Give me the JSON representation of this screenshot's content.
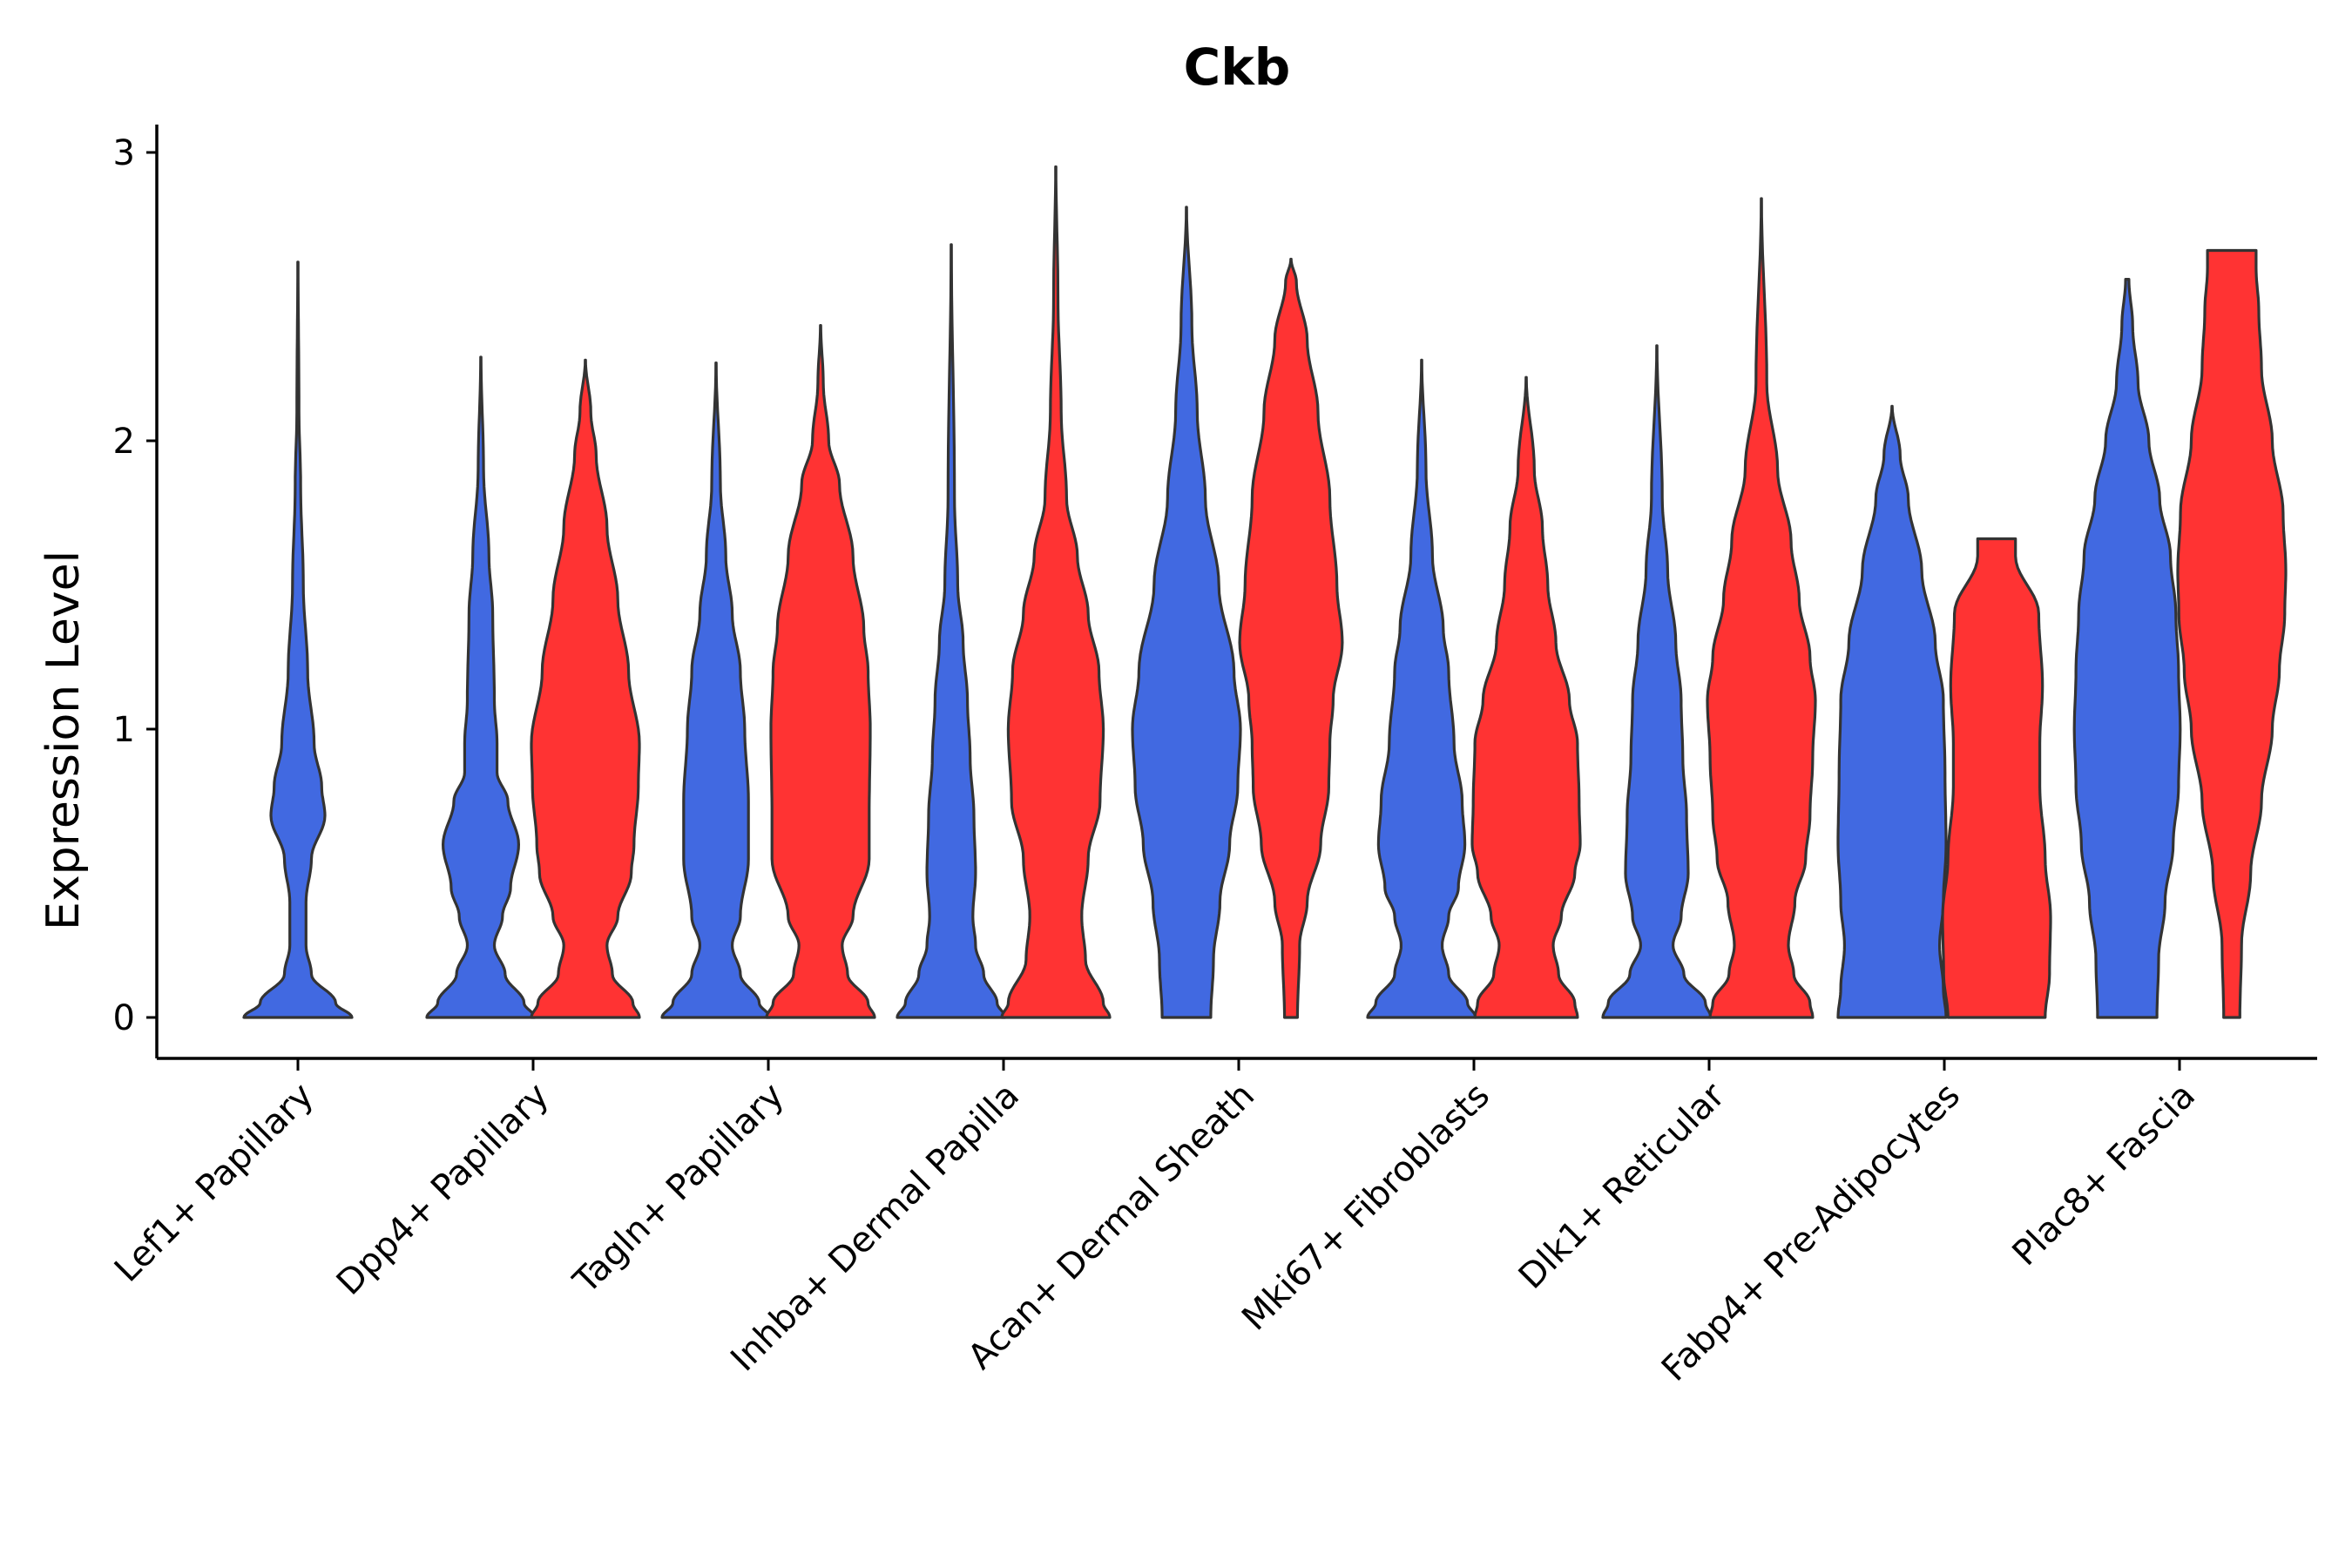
{
  "chart_data": {
    "type": "violin",
    "title": "Ckb",
    "xlabel": "",
    "ylabel": "Expression Level",
    "ylim": [
      -0.15,
      3.1
    ],
    "yticks": [
      0,
      1,
      2,
      3
    ],
    "legend": "none",
    "colors": {
      "blue": "#4169E1",
      "red": "#FF3333"
    },
    "categories": [
      "Lef1+ Papillary",
      "Dpp4+ Papillary",
      "Tagln+ Papillary",
      "Inhba+ Dermal Papilla",
      "Acan+ Dermal Sheath",
      "Mki67+ Fibroblasts",
      "Dlk1+ Reticular",
      "Fabp4+ Pre-Adipocytes",
      "Plac8+ Fascia"
    ],
    "violins": [
      {
        "category": 0,
        "side": "center",
        "color": "blue",
        "max": 2.62,
        "profile": [
          [
            0,
            1.0
          ],
          [
            0.05,
            0.7
          ],
          [
            0.15,
            0.25
          ],
          [
            0.25,
            0.15
          ],
          [
            0.4,
            0.15
          ],
          [
            0.55,
            0.25
          ],
          [
            0.7,
            0.5
          ],
          [
            0.8,
            0.44
          ],
          [
            0.95,
            0.3
          ],
          [
            1.2,
            0.18
          ],
          [
            1.5,
            0.1
          ],
          [
            1.85,
            0.05
          ],
          [
            2.1,
            0.02
          ],
          [
            2.62,
            0.003
          ]
        ]
      },
      {
        "category": 1,
        "side": "left",
        "color": "blue",
        "max": 2.29,
        "profile": [
          [
            0,
            1.0
          ],
          [
            0.05,
            0.8
          ],
          [
            0.15,
            0.45
          ],
          [
            0.25,
            0.25
          ],
          [
            0.35,
            0.4
          ],
          [
            0.45,
            0.55
          ],
          [
            0.6,
            0.7
          ],
          [
            0.75,
            0.5
          ],
          [
            0.85,
            0.3
          ],
          [
            0.95,
            0.3
          ],
          [
            1.1,
            0.25
          ],
          [
            1.4,
            0.22
          ],
          [
            1.6,
            0.15
          ],
          [
            1.9,
            0.05
          ],
          [
            2.29,
            0.003
          ]
        ]
      },
      {
        "category": 1,
        "side": "right",
        "color": "red",
        "max": 2.28,
        "profile": [
          [
            0,
            1.0
          ],
          [
            0.05,
            0.88
          ],
          [
            0.15,
            0.5
          ],
          [
            0.25,
            0.4
          ],
          [
            0.35,
            0.6
          ],
          [
            0.5,
            0.85
          ],
          [
            0.6,
            0.9
          ],
          [
            0.8,
            0.98
          ],
          [
            0.95,
            1.0
          ],
          [
            1.2,
            0.8
          ],
          [
            1.45,
            0.6
          ],
          [
            1.7,
            0.4
          ],
          [
            1.95,
            0.2
          ],
          [
            2.1,
            0.1
          ],
          [
            2.28,
            0.003
          ]
        ]
      },
      {
        "category": 2,
        "side": "left",
        "color": "blue",
        "max": 2.27,
        "profile": [
          [
            0,
            1.0
          ],
          [
            0.05,
            0.8
          ],
          [
            0.15,
            0.45
          ],
          [
            0.25,
            0.3
          ],
          [
            0.35,
            0.45
          ],
          [
            0.55,
            0.6
          ],
          [
            0.75,
            0.6
          ],
          [
            1.0,
            0.53
          ],
          [
            1.2,
            0.45
          ],
          [
            1.4,
            0.3
          ],
          [
            1.6,
            0.18
          ],
          [
            1.85,
            0.08
          ],
          [
            2.27,
            0.003
          ]
        ]
      },
      {
        "category": 2,
        "side": "right",
        "color": "red",
        "max": 2.4,
        "profile": [
          [
            0,
            1.0
          ],
          [
            0.05,
            0.88
          ],
          [
            0.15,
            0.5
          ],
          [
            0.25,
            0.4
          ],
          [
            0.35,
            0.6
          ],
          [
            0.55,
            0.9
          ],
          [
            0.7,
            0.9
          ],
          [
            1.0,
            0.92
          ],
          [
            1.2,
            0.88
          ],
          [
            1.35,
            0.8
          ],
          [
            1.6,
            0.6
          ],
          [
            1.85,
            0.35
          ],
          [
            2.0,
            0.15
          ],
          [
            2.2,
            0.05
          ],
          [
            2.4,
            0.003
          ]
        ]
      },
      {
        "category": 3,
        "side": "left",
        "color": "blue",
        "max": 2.68,
        "profile": [
          [
            0,
            1.0
          ],
          [
            0.05,
            0.85
          ],
          [
            0.15,
            0.6
          ],
          [
            0.25,
            0.45
          ],
          [
            0.35,
            0.4
          ],
          [
            0.5,
            0.45
          ],
          [
            0.7,
            0.42
          ],
          [
            0.9,
            0.35
          ],
          [
            1.1,
            0.3
          ],
          [
            1.3,
            0.22
          ],
          [
            1.5,
            0.12
          ],
          [
            1.8,
            0.06
          ],
          [
            2.68,
            0.003
          ]
        ]
      },
      {
        "category": 3,
        "side": "right",
        "color": "red",
        "max": 2.95,
        "profile": [
          [
            0,
            1.0
          ],
          [
            0.05,
            0.88
          ],
          [
            0.2,
            0.55
          ],
          [
            0.35,
            0.48
          ],
          [
            0.55,
            0.6
          ],
          [
            0.75,
            0.82
          ],
          [
            1.0,
            0.88
          ],
          [
            1.2,
            0.8
          ],
          [
            1.4,
            0.6
          ],
          [
            1.6,
            0.4
          ],
          [
            1.8,
            0.2
          ],
          [
            2.1,
            0.1
          ],
          [
            2.5,
            0.04
          ],
          [
            2.95,
            0.003
          ]
        ]
      },
      {
        "category": 4,
        "side": "left",
        "color": "blue",
        "max": 2.81,
        "profile": [
          [
            0,
            0.45
          ],
          [
            0.2,
            0.5
          ],
          [
            0.4,
            0.62
          ],
          [
            0.6,
            0.8
          ],
          [
            0.8,
            0.95
          ],
          [
            1.0,
            1.0
          ],
          [
            1.2,
            0.88
          ],
          [
            1.5,
            0.6
          ],
          [
            1.8,
            0.35
          ],
          [
            2.1,
            0.2
          ],
          [
            2.4,
            0.1
          ],
          [
            2.81,
            0.003
          ]
        ]
      },
      {
        "category": 4,
        "side": "right",
        "color": "red",
        "max": 2.63,
        "profile": [
          [
            0,
            0.12
          ],
          [
            0.25,
            0.16
          ],
          [
            0.4,
            0.3
          ],
          [
            0.6,
            0.55
          ],
          [
            0.8,
            0.7
          ],
          [
            0.95,
            0.72
          ],
          [
            1.1,
            0.78
          ],
          [
            1.3,
            0.95
          ],
          [
            1.5,
            0.85
          ],
          [
            1.8,
            0.72
          ],
          [
            2.1,
            0.5
          ],
          [
            2.35,
            0.3
          ],
          [
            2.55,
            0.1
          ],
          [
            2.63,
            0.003
          ]
        ]
      },
      {
        "category": 5,
        "side": "left",
        "color": "blue",
        "max": 2.28,
        "profile": [
          [
            0,
            1.0
          ],
          [
            0.05,
            0.85
          ],
          [
            0.15,
            0.5
          ],
          [
            0.25,
            0.38
          ],
          [
            0.35,
            0.5
          ],
          [
            0.45,
            0.68
          ],
          [
            0.6,
            0.8
          ],
          [
            0.75,
            0.75
          ],
          [
            0.95,
            0.6
          ],
          [
            1.2,
            0.5
          ],
          [
            1.35,
            0.4
          ],
          [
            1.6,
            0.2
          ],
          [
            1.9,
            0.08
          ],
          [
            2.28,
            0.003
          ]
        ]
      },
      {
        "category": 5,
        "side": "right",
        "color": "red",
        "max": 2.22,
        "profile": [
          [
            0,
            0.95
          ],
          [
            0.05,
            0.9
          ],
          [
            0.15,
            0.6
          ],
          [
            0.25,
            0.5
          ],
          [
            0.35,
            0.65
          ],
          [
            0.5,
            0.9
          ],
          [
            0.6,
            1.0
          ],
          [
            0.75,
            0.98
          ],
          [
            0.95,
            0.95
          ],
          [
            1.1,
            0.8
          ],
          [
            1.3,
            0.55
          ],
          [
            1.5,
            0.4
          ],
          [
            1.7,
            0.3
          ],
          [
            1.9,
            0.15
          ],
          [
            2.22,
            0.003
          ]
        ]
      },
      {
        "category": 6,
        "side": "left",
        "color": "blue",
        "max": 2.33,
        "profile": [
          [
            0,
            1.0
          ],
          [
            0.05,
            0.9
          ],
          [
            0.15,
            0.5
          ],
          [
            0.25,
            0.3
          ],
          [
            0.35,
            0.45
          ],
          [
            0.5,
            0.58
          ],
          [
            0.7,
            0.55
          ],
          [
            0.9,
            0.48
          ],
          [
            1.1,
            0.45
          ],
          [
            1.3,
            0.35
          ],
          [
            1.55,
            0.2
          ],
          [
            1.8,
            0.1
          ],
          [
            2.33,
            0.003
          ]
        ]
      },
      {
        "category": 6,
        "side": "right",
        "color": "red",
        "max": 2.84,
        "profile": [
          [
            0,
            0.95
          ],
          [
            0.05,
            0.9
          ],
          [
            0.15,
            0.6
          ],
          [
            0.25,
            0.5
          ],
          [
            0.4,
            0.62
          ],
          [
            0.55,
            0.82
          ],
          [
            0.7,
            0.9
          ],
          [
            0.9,
            0.95
          ],
          [
            1.1,
            1.0
          ],
          [
            1.25,
            0.9
          ],
          [
            1.45,
            0.7
          ],
          [
            1.65,
            0.55
          ],
          [
            1.9,
            0.3
          ],
          [
            2.2,
            0.1
          ],
          [
            2.84,
            0.003
          ]
        ]
      },
      {
        "category": 7,
        "side": "left",
        "color": "blue",
        "max": 2.12,
        "profile": [
          [
            0,
            1.0
          ],
          [
            0.1,
            0.95
          ],
          [
            0.25,
            0.88
          ],
          [
            0.4,
            0.95
          ],
          [
            0.6,
            1.0
          ],
          [
            0.85,
            0.98
          ],
          [
            1.1,
            0.95
          ],
          [
            1.3,
            0.8
          ],
          [
            1.55,
            0.55
          ],
          [
            1.8,
            0.3
          ],
          [
            1.95,
            0.15
          ],
          [
            2.12,
            0.003
          ]
        ]
      },
      {
        "category": 7,
        "side": "right",
        "color": "red",
        "max": 1.66,
        "profile": [
          [
            0,
            0.9
          ],
          [
            0.15,
            0.98
          ],
          [
            0.35,
            1.0
          ],
          [
            0.55,
            0.9
          ],
          [
            0.8,
            0.8
          ],
          [
            0.95,
            0.8
          ],
          [
            1.15,
            0.85
          ],
          [
            1.4,
            0.78
          ],
          [
            1.6,
            0.35
          ],
          [
            1.66,
            0.35
          ]
        ]
      },
      {
        "category": 8,
        "side": "left",
        "color": "blue",
        "max": 2.56,
        "profile": [
          [
            0,
            0.55
          ],
          [
            0.2,
            0.58
          ],
          [
            0.4,
            0.7
          ],
          [
            0.6,
            0.85
          ],
          [
            0.8,
            0.95
          ],
          [
            1.0,
            0.98
          ],
          [
            1.2,
            0.95
          ],
          [
            1.4,
            0.9
          ],
          [
            1.6,
            0.8
          ],
          [
            1.8,
            0.6
          ],
          [
            2.0,
            0.4
          ],
          [
            2.2,
            0.2
          ],
          [
            2.4,
            0.1
          ],
          [
            2.56,
            0.03
          ]
        ]
      },
      {
        "category": 8,
        "side": "right",
        "color": "red",
        "max": 2.66,
        "profile": [
          [
            0,
            0.15
          ],
          [
            0.25,
            0.18
          ],
          [
            0.5,
            0.35
          ],
          [
            0.75,
            0.55
          ],
          [
            1.0,
            0.75
          ],
          [
            1.2,
            0.88
          ],
          [
            1.4,
            0.98
          ],
          [
            1.55,
            1.0
          ],
          [
            1.75,
            0.95
          ],
          [
            2.0,
            0.75
          ],
          [
            2.25,
            0.55
          ],
          [
            2.45,
            0.5
          ],
          [
            2.6,
            0.45
          ],
          [
            2.66,
            0.45
          ]
        ]
      }
    ]
  }
}
